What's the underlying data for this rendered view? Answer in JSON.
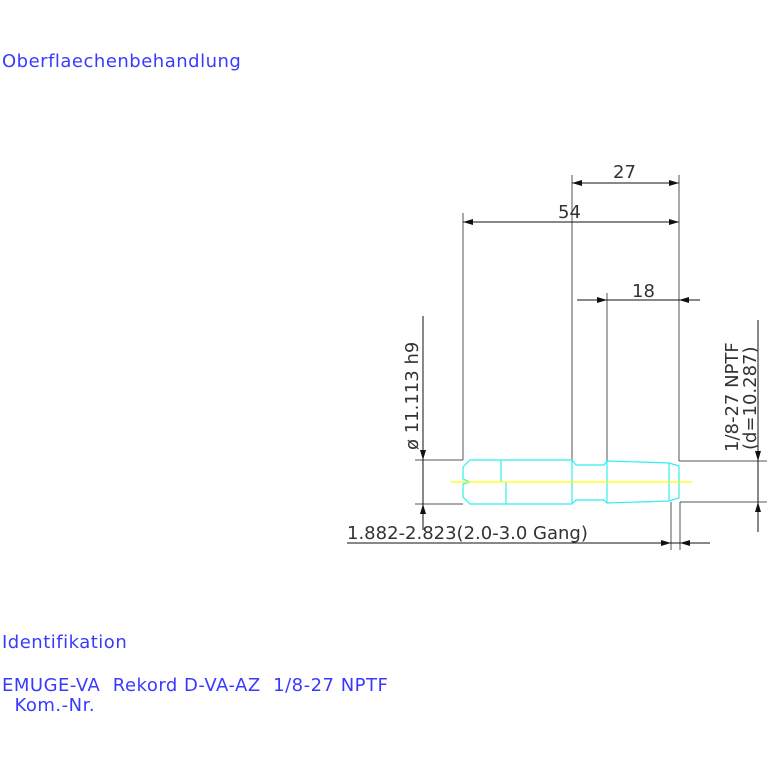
{
  "labels": {
    "surface_treatment": "Oberflaechenbehandlung",
    "identification": "Identifikation",
    "product": "EMUGE-VA  Rekord D-VA-AZ  1/8-27 NPTF",
    "comm_no": "  Kom.-Nr."
  },
  "dimensions": {
    "overall_length": "54",
    "thread_section": "27",
    "thread_length": "18",
    "shank_diameter": "ø 11.113  h9",
    "thread_spec": "1/8-27 NPTF",
    "thread_diameter": "(d=10.287)",
    "chamfer": "1.882-2.823(2.0-3.0 Gang)"
  },
  "colors": {
    "text": "#3a3aff",
    "tool_outline": "#33eeee",
    "centerline": "#ffff00",
    "dimension_lines": "#333333"
  }
}
